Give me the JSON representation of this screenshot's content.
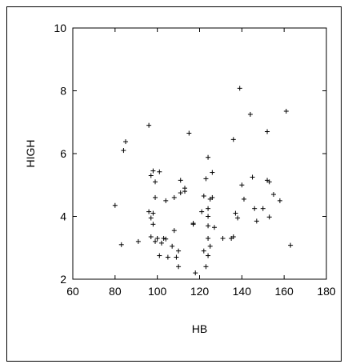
{
  "chart_data": {
    "type": "scatter",
    "title": "",
    "xlabel": "HB",
    "ylabel": "HIGH",
    "xlim": [
      60,
      180
    ],
    "ylim": [
      2,
      10
    ],
    "xticks": [
      "60",
      "80",
      "100",
      "120",
      "140",
      "160",
      "180"
    ],
    "yticks": [
      "2",
      "4",
      "6",
      "8",
      "10"
    ],
    "grid": false,
    "marker": "+",
    "points": [
      {
        "x": 80,
        "y": 4.35
      },
      {
        "x": 83,
        "y": 3.1
      },
      {
        "x": 84,
        "y": 6.1
      },
      {
        "x": 85,
        "y": 6.38
      },
      {
        "x": 91,
        "y": 3.2
      },
      {
        "x": 96,
        "y": 6.9
      },
      {
        "x": 96,
        "y": 4.15
      },
      {
        "x": 97,
        "y": 3.95
      },
      {
        "x": 97,
        "y": 3.35
      },
      {
        "x": 97,
        "y": 5.3
      },
      {
        "x": 98,
        "y": 5.45
      },
      {
        "x": 98,
        "y": 4.1
      },
      {
        "x": 98,
        "y": 3.75
      },
      {
        "x": 99,
        "y": 5.1
      },
      {
        "x": 99,
        "y": 4.6
      },
      {
        "x": 99,
        "y": 3.2
      },
      {
        "x": 100,
        "y": 3.3
      },
      {
        "x": 101,
        "y": 2.75
      },
      {
        "x": 101,
        "y": 5.42
      },
      {
        "x": 102,
        "y": 3.15
      },
      {
        "x": 103,
        "y": 3.3
      },
      {
        "x": 104,
        "y": 3.28
      },
      {
        "x": 104,
        "y": 4.5
      },
      {
        "x": 105,
        "y": 2.7
      },
      {
        "x": 107,
        "y": 3.05
      },
      {
        "x": 108,
        "y": 4.6
      },
      {
        "x": 108,
        "y": 3.55
      },
      {
        "x": 109,
        "y": 2.7
      },
      {
        "x": 110,
        "y": 2.9
      },
      {
        "x": 110,
        "y": 2.4
      },
      {
        "x": 111,
        "y": 5.15
      },
      {
        "x": 111,
        "y": 4.75
      },
      {
        "x": 113,
        "y": 4.9
      },
      {
        "x": 113,
        "y": 4.8
      },
      {
        "x": 115,
        "y": 6.65
      },
      {
        "x": 117,
        "y": 3.75
      },
      {
        "x": 117,
        "y": 3.78
      },
      {
        "x": 118,
        "y": 2.2
      },
      {
        "x": 121,
        "y": 4.15
      },
      {
        "x": 122,
        "y": 4.65
      },
      {
        "x": 122,
        "y": 2.9
      },
      {
        "x": 123,
        "y": 2.4
      },
      {
        "x": 123,
        "y": 5.2
      },
      {
        "x": 124,
        "y": 5.88
      },
      {
        "x": 124,
        "y": 4.25
      },
      {
        "x": 124,
        "y": 4.0
      },
      {
        "x": 124,
        "y": 3.7
      },
      {
        "x": 124,
        "y": 3.3
      },
      {
        "x": 124,
        "y": 2.75
      },
      {
        "x": 125,
        "y": 4.55
      },
      {
        "x": 125,
        "y": 3.05
      },
      {
        "x": 126,
        "y": 4.6
      },
      {
        "x": 126,
        "y": 5.4
      },
      {
        "x": 127,
        "y": 3.65
      },
      {
        "x": 131,
        "y": 3.3
      },
      {
        "x": 135,
        "y": 3.3
      },
      {
        "x": 136,
        "y": 3.35
      },
      {
        "x": 136,
        "y": 6.45
      },
      {
        "x": 137,
        "y": 4.1
      },
      {
        "x": 138,
        "y": 3.95
      },
      {
        "x": 139,
        "y": 8.08
      },
      {
        "x": 140,
        "y": 5.0
      },
      {
        "x": 141,
        "y": 4.55
      },
      {
        "x": 144,
        "y": 7.25
      },
      {
        "x": 145,
        "y": 5.25
      },
      {
        "x": 146,
        "y": 4.25
      },
      {
        "x": 147,
        "y": 3.85
      },
      {
        "x": 150,
        "y": 4.25
      },
      {
        "x": 152,
        "y": 5.15
      },
      {
        "x": 152,
        "y": 6.7
      },
      {
        "x": 153,
        "y": 5.1
      },
      {
        "x": 153,
        "y": 3.98
      },
      {
        "x": 155,
        "y": 4.7
      },
      {
        "x": 158,
        "y": 4.5
      },
      {
        "x": 161,
        "y": 7.35
      },
      {
        "x": 163,
        "y": 3.08
      }
    ]
  }
}
